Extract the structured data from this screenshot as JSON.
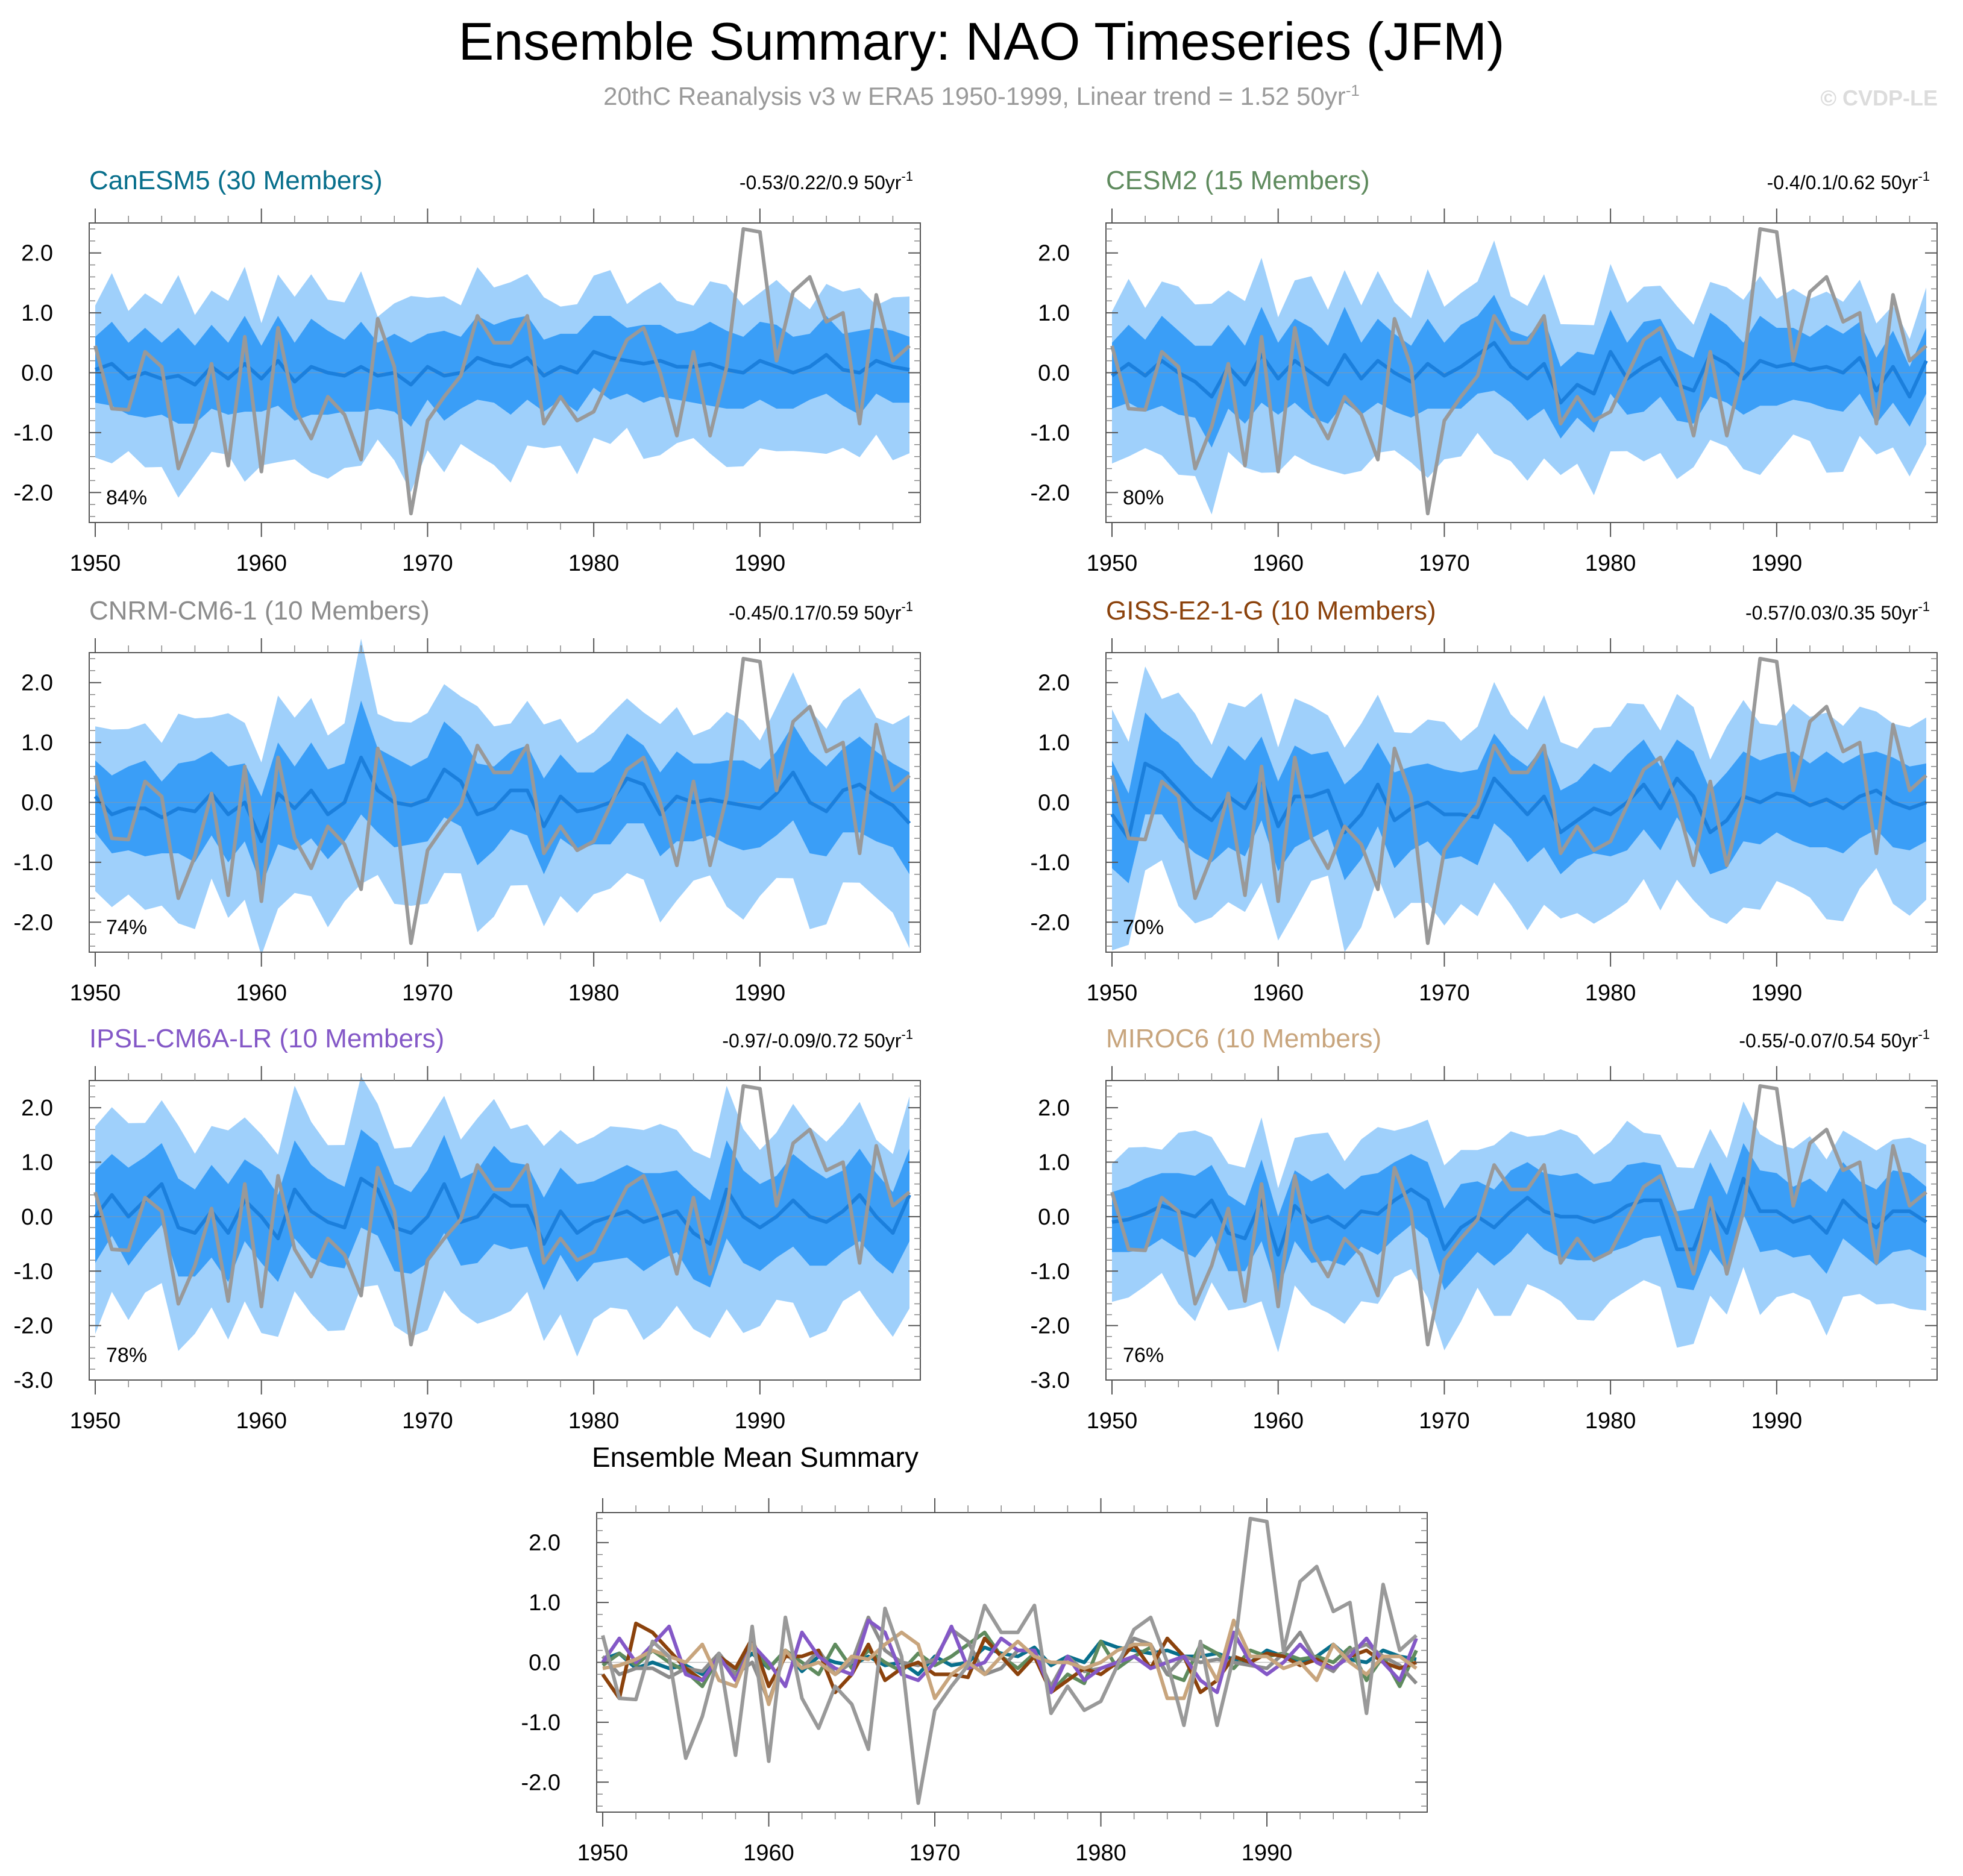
{
  "title": "Ensemble Summary: NAO Timeseries (JFM)",
  "subtitle_main": "20thC Reanalysis v3 w ERA5 1950-1999, Linear trend = 1.52 50yr",
  "subtitle_sup": "-1",
  "copyright": "© CVDP-LE",
  "colors": {
    "outer_band": "#9fd0fb",
    "inner_band": "#3a9ef7",
    "ens_mean": "#1b7fdc",
    "observed": "#999999"
  },
  "chart_data": {
    "type": "line",
    "x": [
      1950,
      1951,
      1952,
      1953,
      1954,
      1955,
      1956,
      1957,
      1958,
      1959,
      1960,
      1961,
      1962,
      1963,
      1964,
      1965,
      1966,
      1967,
      1968,
      1969,
      1970,
      1971,
      1972,
      1973,
      1974,
      1975,
      1976,
      1977,
      1978,
      1979,
      1980,
      1981,
      1982,
      1983,
      1984,
      1985,
      1986,
      1987,
      1988,
      1989,
      1990,
      1991,
      1992,
      1993,
      1994,
      1995,
      1996,
      1997,
      1998,
      1999
    ],
    "xticks": [
      1950,
      1960,
      1970,
      1980,
      1990
    ],
    "observed": {
      "name": "20thC Reanalysis v3 w ERA5",
      "values": [
        0.45,
        -0.6,
        -0.62,
        0.35,
        0.1,
        -1.6,
        -0.9,
        0.15,
        -1.55,
        0.6,
        -1.65,
        0.75,
        -0.6,
        -1.1,
        -0.4,
        -0.7,
        -1.45,
        0.9,
        0.1,
        -2.35,
        -0.8,
        -0.4,
        -0.05,
        0.95,
        0.5,
        0.5,
        0.95,
        -0.85,
        -0.4,
        -0.8,
        -0.65,
        -0.05,
        0.55,
        0.75,
        0.0,
        -1.05,
        0.35,
        -1.05,
        0.1,
        2.4,
        2.35,
        0.2,
        1.35,
        1.6,
        0.85,
        1.0,
        -0.85,
        1.3,
        0.2,
        0.45
      ]
    },
    "panels": [
      {
        "name": "CanESM5 (30 Members)",
        "color": "#086f8c",
        "trend": "-0.53/0.22/0.9 50yr",
        "pct": "84%",
        "ylim": [
          -2.5,
          2.5
        ],
        "yticks": [
          2,
          1,
          0,
          -1,
          -2
        ],
        "mean": [
          0.05,
          0.15,
          -0.1,
          0.0,
          -0.1,
          -0.05,
          -0.2,
          0.1,
          -0.1,
          0.15,
          -0.1,
          0.2,
          -0.15,
          0.1,
          0.0,
          -0.05,
          0.1,
          -0.05,
          0.0,
          -0.2,
          0.1,
          -0.05,
          0.0,
          0.25,
          0.15,
          0.1,
          0.25,
          -0.05,
          0.1,
          0.0,
          0.35,
          0.25,
          0.2,
          0.15,
          0.2,
          0.1,
          0.1,
          0.15,
          0.05,
          0.0,
          0.2,
          0.1,
          0.0,
          0.1,
          0.3,
          0.05,
          0.0,
          0.2,
          0.1,
          0.05
        ],
        "amp": [
          0.55,
          0.7,
          0.6,
          0.75,
          0.6,
          0.8,
          0.65,
          0.7,
          0.6,
          0.8,
          0.55,
          0.75,
          0.65,
          0.8,
          0.7,
          0.6,
          0.75,
          0.55,
          0.65,
          0.7,
          0.55,
          0.75,
          0.6,
          0.7,
          0.65,
          0.8,
          0.7,
          0.6,
          0.55,
          0.65,
          0.6,
          0.7,
          0.55,
          0.65,
          0.6,
          0.55,
          0.6,
          0.7,
          0.65,
          0.6,
          0.65,
          0.7,
          0.6,
          0.55,
          0.65,
          0.6,
          0.7,
          0.55,
          0.6,
          0.55
        ]
      },
      {
        "name": "CESM2 (15 Members)",
        "color": "#5f8b5e",
        "trend": "-0.4/0.1/0.62 50yr",
        "pct": "80%",
        "ylim": [
          -2.5,
          2.5
        ],
        "yticks": [
          2,
          1,
          0,
          -1,
          -2
        ],
        "mean": [
          -0.05,
          0.15,
          -0.05,
          0.2,
          0.0,
          -0.15,
          -0.4,
          0.1,
          -0.2,
          0.3,
          -0.1,
          0.2,
          0.0,
          -0.2,
          0.3,
          -0.1,
          0.2,
          0.0,
          -0.15,
          0.15,
          -0.05,
          0.1,
          0.3,
          0.5,
          0.1,
          -0.1,
          0.15,
          -0.5,
          -0.2,
          -0.35,
          0.35,
          -0.1,
          0.1,
          0.25,
          -0.2,
          -0.3,
          0.3,
          0.15,
          -0.1,
          0.2,
          0.1,
          0.15,
          0.05,
          0.1,
          0.0,
          0.25,
          -0.3,
          0.1,
          -0.4,
          0.2
        ],
        "amp": [
          0.55,
          0.65,
          0.6,
          0.75,
          0.7,
          0.6,
          0.85,
          0.7,
          0.65,
          0.8,
          0.6,
          0.7,
          0.75,
          0.65,
          0.8,
          0.6,
          0.7,
          0.65,
          0.6,
          0.75,
          0.55,
          0.7,
          0.65,
          0.8,
          0.6,
          0.7,
          0.75,
          0.6,
          0.55,
          0.65,
          0.7,
          0.6,
          0.75,
          0.65,
          0.6,
          0.55,
          0.7,
          0.65,
          0.6,
          0.75,
          0.65,
          0.6,
          0.55,
          0.7,
          0.65,
          0.6,
          0.55,
          0.6,
          0.5,
          0.55
        ]
      },
      {
        "name": "CNRM-CM6-1 (10 Members)",
        "color": "#8c8c8c",
        "trend": "-0.45/0.17/0.59 50yr",
        "pct": "74%",
        "ylim": [
          -2.5,
          2.5
        ],
        "yticks": [
          2,
          1,
          0,
          -1,
          -2
        ],
        "mean": [
          0.1,
          -0.2,
          -0.1,
          -0.1,
          -0.25,
          -0.1,
          -0.15,
          0.15,
          -0.2,
          0.0,
          -0.65,
          0.15,
          -0.1,
          0.2,
          -0.2,
          0.0,
          0.75,
          0.2,
          0.0,
          -0.05,
          0.05,
          0.55,
          0.35,
          -0.2,
          -0.1,
          0.2,
          0.2,
          -0.4,
          0.1,
          -0.15,
          -0.1,
          0.0,
          0.4,
          0.3,
          -0.2,
          0.1,
          0.0,
          0.05,
          0.0,
          -0.05,
          -0.1,
          0.15,
          0.5,
          0.0,
          -0.15,
          0.2,
          0.3,
          0.1,
          -0.05,
          -0.35
        ],
        "amp": [
          0.6,
          0.65,
          0.7,
          0.8,
          0.6,
          0.75,
          0.85,
          0.7,
          0.8,
          0.65,
          0.75,
          0.85,
          0.7,
          0.8,
          0.75,
          0.65,
          0.95,
          0.7,
          0.75,
          0.65,
          0.7,
          0.8,
          0.75,
          0.85,
          0.7,
          0.65,
          0.75,
          0.8,
          0.7,
          0.65,
          0.6,
          0.7,
          0.75,
          0.65,
          0.7,
          0.75,
          0.65,
          0.6,
          0.7,
          0.75,
          0.65,
          0.7,
          0.8,
          0.85,
          0.75,
          0.7,
          0.8,
          0.75,
          0.7,
          0.85
        ]
      },
      {
        "name": "GISS-E2-1-G (10 Members)",
        "color": "#8b420c",
        "trend": "-0.57/0.03/0.35 50yr",
        "pct": "70%",
        "ylim": [
          -2.5,
          2.5
        ],
        "yticks": [
          2,
          1,
          0,
          -1,
          -2
        ],
        "mean": [
          -0.2,
          -0.6,
          0.65,
          0.5,
          0.2,
          -0.1,
          -0.3,
          0.1,
          -0.1,
          0.4,
          -0.4,
          0.1,
          0.1,
          0.2,
          -0.5,
          -0.2,
          0.3,
          -0.3,
          -0.1,
          0.0,
          -0.2,
          -0.2,
          -0.25,
          0.4,
          0.1,
          -0.2,
          0.1,
          -0.5,
          -0.3,
          -0.1,
          -0.2,
          0.0,
          0.3,
          -0.1,
          0.4,
          0.1,
          -0.5,
          -0.3,
          0.1,
          0.0,
          0.15,
          0.1,
          -0.05,
          0.05,
          -0.1,
          0.1,
          0.2,
          0.0,
          -0.1,
          0.0
        ],
        "amp": [
          0.9,
          0.75,
          0.85,
          0.7,
          0.8,
          0.75,
          0.7,
          0.85,
          0.8,
          0.7,
          0.75,
          0.85,
          0.7,
          0.65,
          0.8,
          0.75,
          0.7,
          0.8,
          0.7,
          0.65,
          0.75,
          0.7,
          0.8,
          0.75,
          0.7,
          0.8,
          0.85,
          0.7,
          0.65,
          0.75,
          0.7,
          0.8,
          0.75,
          0.7,
          0.65,
          0.75,
          0.7,
          0.8,
          0.75,
          0.7,
          0.65,
          0.75,
          0.7,
          0.8,
          0.75,
          0.7,
          0.65,
          0.75,
          0.7,
          0.65
        ]
      },
      {
        "name": "IPSL-CM6A-LR (10 Members)",
        "color": "#8458c7",
        "trend": "-0.97/-0.09/0.72 50yr",
        "pct": "78%",
        "ylim": [
          -3.0,
          2.5
        ],
        "yticks": [
          2,
          1,
          0,
          -1,
          -2,
          -3
        ],
        "mean": [
          0.0,
          0.4,
          0.0,
          0.3,
          0.6,
          -0.2,
          -0.3,
          0.1,
          -0.3,
          0.3,
          0.0,
          -0.4,
          0.5,
          0.1,
          -0.1,
          -0.2,
          0.7,
          0.5,
          -0.2,
          -0.3,
          0.0,
          0.6,
          -0.1,
          0.0,
          0.4,
          0.2,
          0.2,
          -0.5,
          0.1,
          -0.3,
          -0.1,
          0.0,
          0.1,
          -0.1,
          0.0,
          0.1,
          -0.3,
          -0.5,
          0.5,
          0.0,
          -0.2,
          0.0,
          0.3,
          0.0,
          -0.1,
          0.1,
          0.4,
          0.0,
          -0.3,
          0.4
        ],
        "amp": [
          0.85,
          0.75,
          0.9,
          0.8,
          0.75,
          0.9,
          0.8,
          0.85,
          0.9,
          0.75,
          0.85,
          0.8,
          0.9,
          0.85,
          0.8,
          0.75,
          0.9,
          0.85,
          0.8,
          0.75,
          0.85,
          0.9,
          0.8,
          0.85,
          0.9,
          0.8,
          0.75,
          0.85,
          0.8,
          0.9,
          0.75,
          0.8,
          0.85,
          0.9,
          0.8,
          0.75,
          0.85,
          0.8,
          0.9,
          0.85,
          0.8,
          0.75,
          0.85,
          0.9,
          0.8,
          0.75,
          0.85,
          0.8,
          0.75,
          0.85
        ]
      },
      {
        "name": "MIROC6 (10 Members)",
        "color": "#c8a57d",
        "trend": "-0.55/-0.07/0.54 50yr",
        "pct": "76%",
        "ylim": [
          -3.0,
          2.5
        ],
        "yticks": [
          2,
          1,
          0,
          -1,
          -2,
          -3
        ],
        "mean": [
          -0.1,
          -0.05,
          0.05,
          0.2,
          0.1,
          0.0,
          0.3,
          -0.3,
          -0.4,
          0.3,
          -0.7,
          0.2,
          -0.1,
          0.0,
          -0.2,
          0.1,
          0.05,
          0.3,
          0.5,
          0.3,
          -0.6,
          -0.2,
          0.0,
          -0.2,
          0.1,
          0.35,
          0.1,
          0.0,
          0.0,
          -0.1,
          0.0,
          0.2,
          0.3,
          0.3,
          -0.6,
          -0.6,
          0.2,
          -0.3,
          0.7,
          0.1,
          0.1,
          -0.1,
          0.0,
          -0.3,
          0.3,
          0.0,
          -0.2,
          0.1,
          0.1,
          -0.1
        ],
        "amp": [
          0.55,
          0.6,
          0.65,
          0.6,
          0.7,
          0.75,
          0.65,
          0.7,
          0.6,
          0.75,
          0.7,
          0.65,
          0.75,
          0.8,
          0.7,
          0.65,
          0.75,
          0.7,
          0.65,
          0.7,
          0.75,
          0.8,
          0.65,
          0.7,
          0.75,
          0.65,
          0.7,
          0.75,
          0.8,
          0.7,
          0.65,
          0.75,
          0.7,
          0.65,
          0.7,
          0.75,
          0.8,
          0.7,
          0.65,
          0.75,
          0.7,
          0.65,
          0.7,
          0.75,
          0.7,
          0.65,
          0.7,
          0.75,
          0.7,
          0.65
        ]
      }
    ],
    "summary": {
      "title": "Ensemble Mean Summary",
      "ylim": [
        -2.5,
        2.5
      ],
      "yticks": [
        2,
        1,
        0,
        -1,
        -2
      ]
    }
  },
  "labels": {
    "ytick_format": "1 decimal",
    "trend_sup": "-1"
  }
}
